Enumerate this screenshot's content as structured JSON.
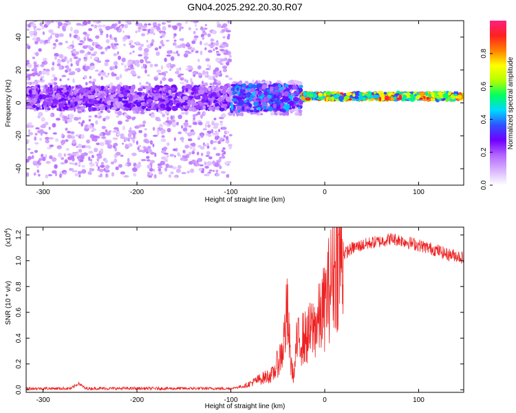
{
  "figure_title": "GN04.2025.292.20.30.R07",
  "chart_data": [
    {
      "type": "heatmap",
      "title": "GN04.2025.292.20.30.R07",
      "xlabel": "Height of straight line (km)",
      "ylabel": "Frequency (Hz)",
      "xlim": [
        -318,
        148
      ],
      "ylim": [
        -50,
        50
      ],
      "xticks": [
        -300,
        -200,
        -100,
        0,
        100
      ],
      "yticks": [
        -40,
        -20,
        0,
        20,
        40
      ],
      "colorbar": {
        "label": "Normalized spectral amplitude",
        "range": [
          0,
          1
        ],
        "ticks": [
          "0.0",
          "0.2",
          "0.4",
          "0.6",
          "0.8"
        ],
        "colormap": [
          "#ffffff",
          "#d9b3ff",
          "#b366ff",
          "#7000ff",
          "#3050ff",
          "#00d8ff",
          "#00ff60",
          "#b4ff00",
          "#ffff00",
          "#ff8000",
          "#ff2020",
          "#ff2080"
        ]
      },
      "description_regions": [
        {
          "x_range": [
            -318,
            -100
          ],
          "band_center_hz": 3,
          "band_halfwidth_hz": 7,
          "scatter_halfwidth_hz": 48,
          "peak_amplitude": 0.3
        },
        {
          "x_range": [
            -100,
            -25
          ],
          "band_center_hz": 3,
          "band_halfwidth_hz": 8,
          "scatter_halfwidth_hz": 10,
          "peak_amplitude": 0.45
        },
        {
          "x_range": [
            -25,
            148
          ],
          "band_center_hz": 4,
          "band_halfwidth_hz": 2,
          "scatter_halfwidth_hz": 0,
          "peak_amplitude": 0.95
        }
      ]
    },
    {
      "type": "line",
      "xlabel": "Height of straight line (km)",
      "ylabel": "SNR (10 * v/v)",
      "y_scale_label": "(x10",
      "y_scale_exponent": "4",
      "xlim": [
        -318,
        148
      ],
      "ylim": [
        -0.02,
        1.26
      ],
      "xticks": [
        -300,
        -200,
        -100,
        0,
        100
      ],
      "yticks": [
        0.0,
        0.2,
        0.4,
        0.6,
        0.8,
        1.0,
        1.2
      ],
      "color": "#ee2222",
      "series": [
        {
          "name": "SNR",
          "x": [
            -318,
            -270,
            -262,
            -255,
            -200,
            -120,
            -100,
            -85,
            -70,
            -55,
            -45,
            -40,
            -36,
            -33,
            -30,
            -25,
            -20,
            -15,
            -10,
            -5,
            0,
            5,
            10,
            20,
            30,
            40,
            50,
            60,
            70,
            80,
            90,
            100,
            110,
            120,
            130,
            140,
            148
          ],
          "y": [
            0.01,
            0.01,
            0.05,
            0.01,
            0.01,
            0.01,
            0.01,
            0.03,
            0.08,
            0.12,
            0.3,
            0.6,
            0.2,
            0.1,
            0.35,
            0.4,
            0.4,
            0.45,
            0.5,
            0.55,
            0.65,
            0.8,
            0.95,
            1.05,
            1.1,
            1.12,
            1.14,
            1.15,
            1.17,
            1.16,
            1.14,
            1.12,
            1.1,
            1.08,
            1.05,
            1.04,
            1.02
          ]
        }
      ]
    }
  ]
}
